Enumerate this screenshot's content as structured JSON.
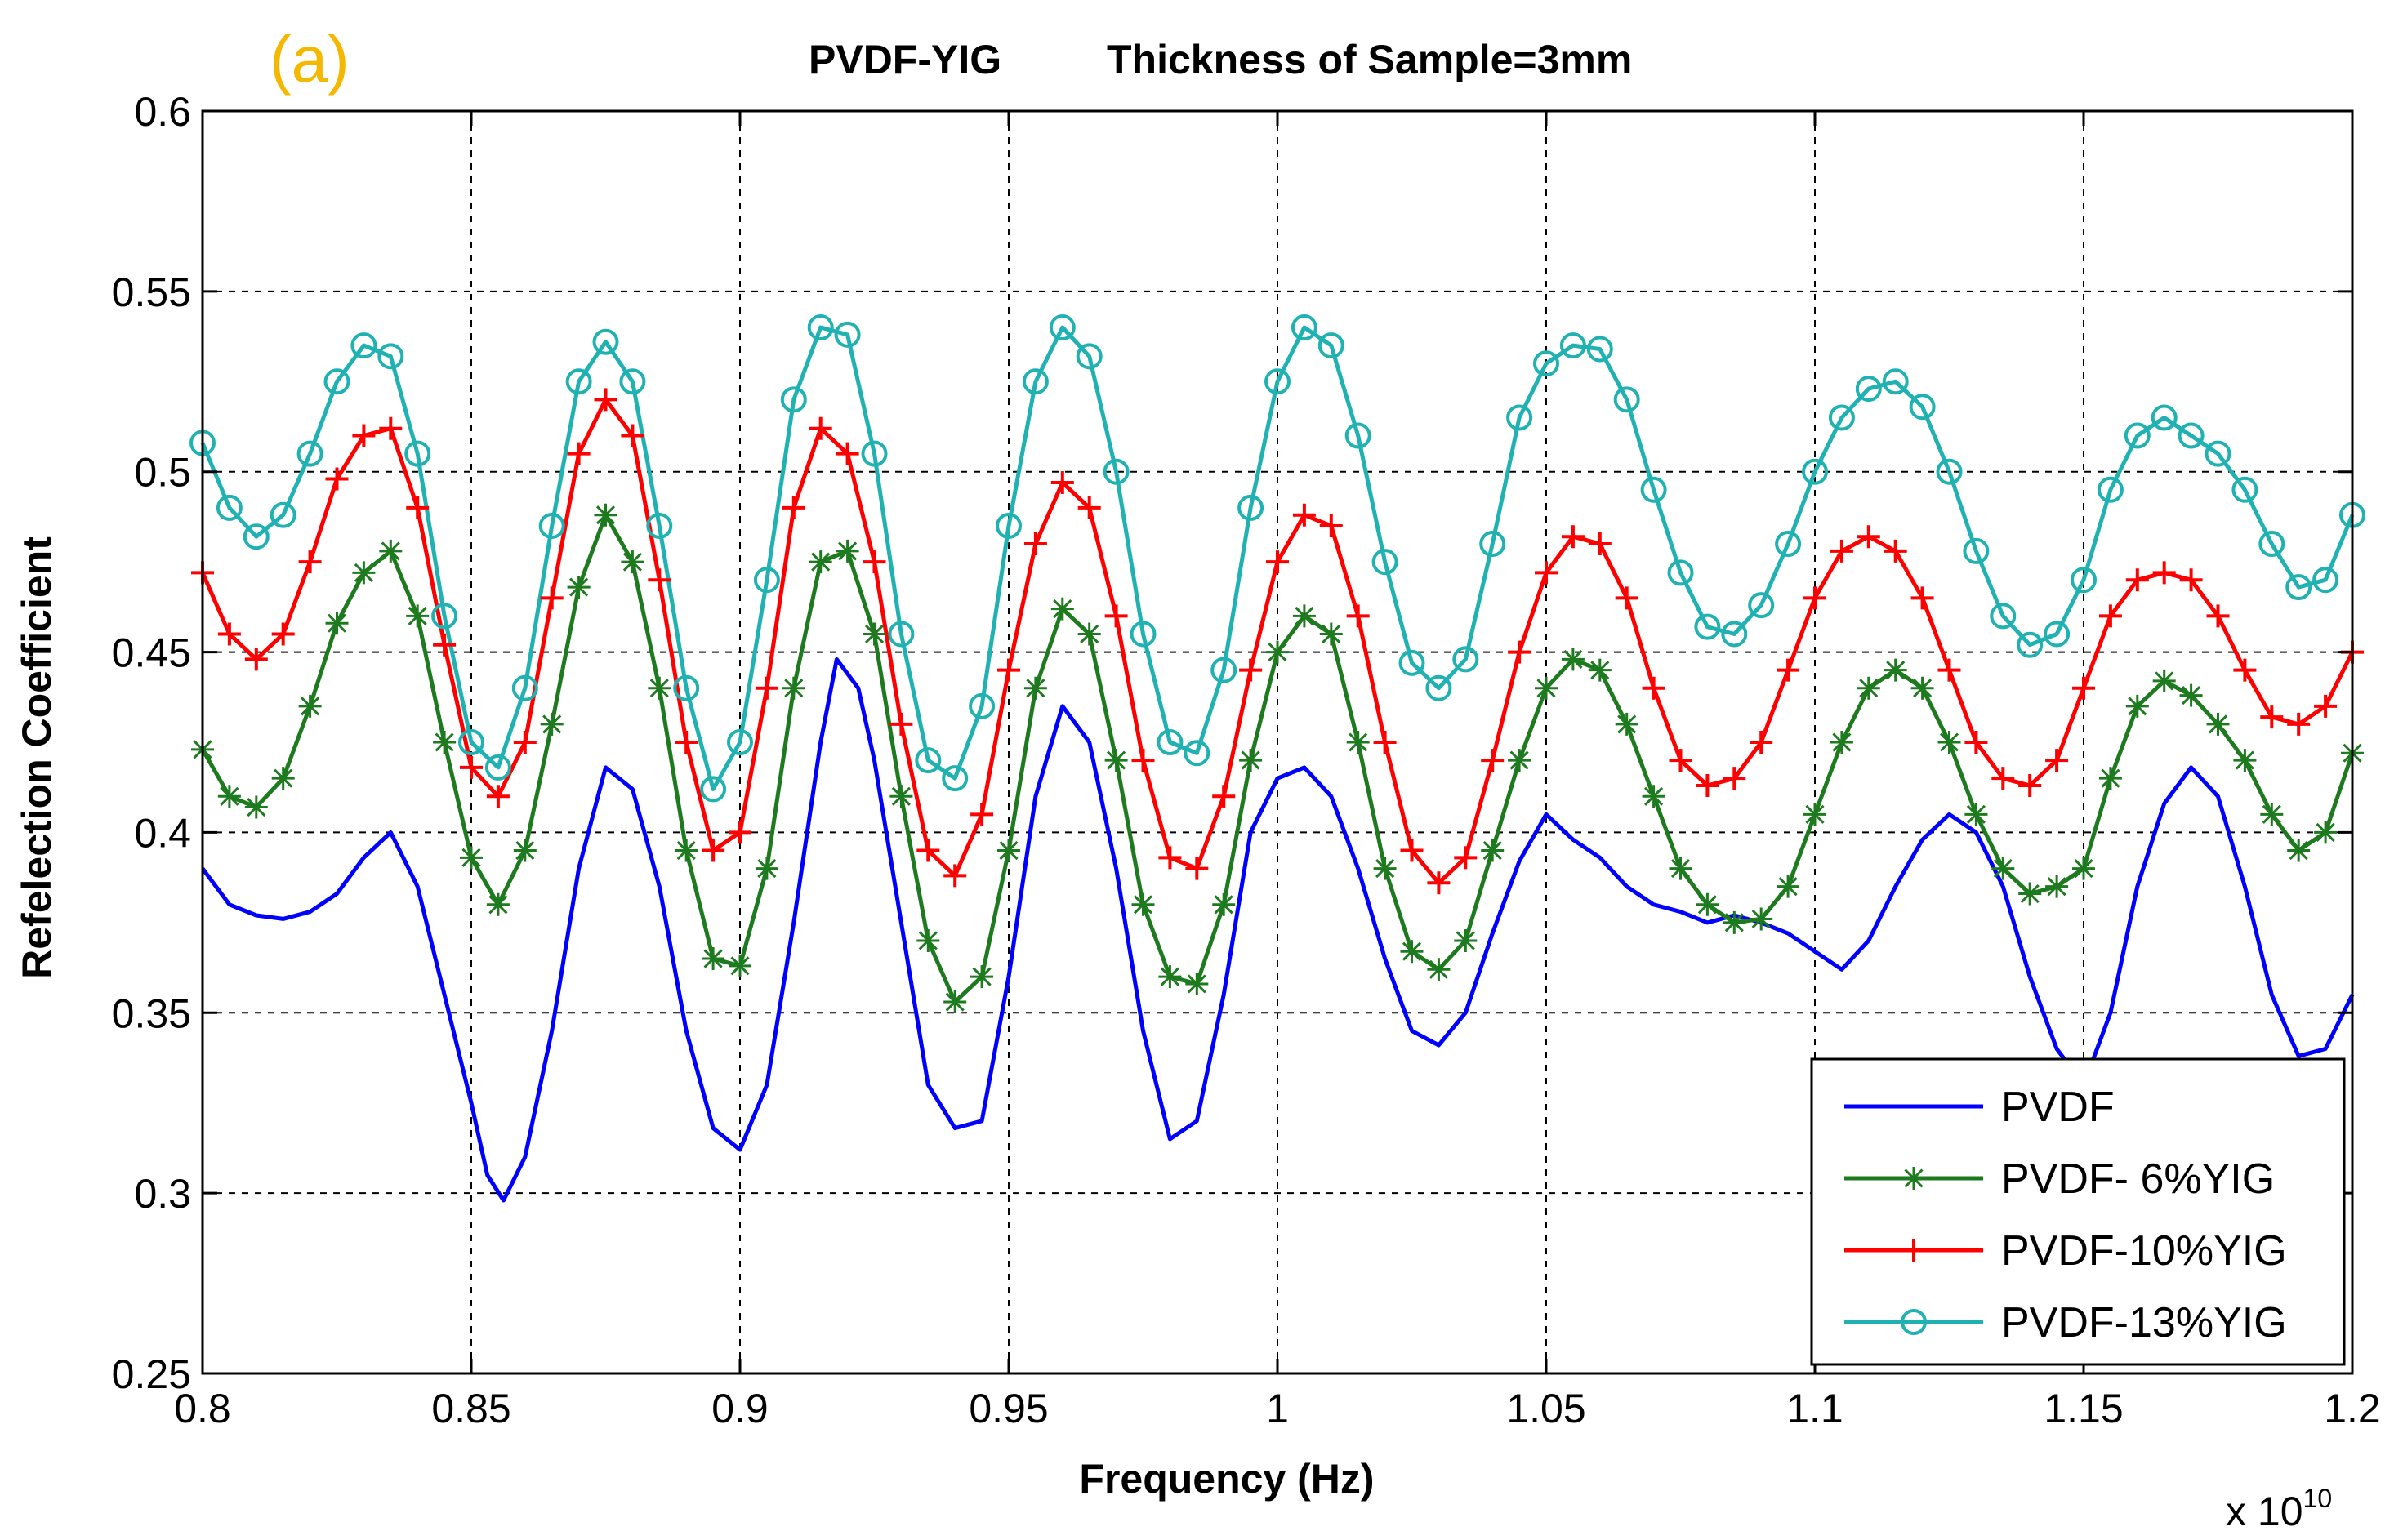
{
  "panel_label": "(a)",
  "chart_data": {
    "type": "line",
    "title_left": "PVDF-YIG",
    "title_right": "Thickness of Sample=3mm",
    "xlabel": "Frequency (Hz)",
    "ylabel": "Refelection Coefficient",
    "x_multiplier_base": "x 10",
    "x_multiplier_exp": "10",
    "xlim": [
      0.8,
      1.2
    ],
    "ylim": [
      0.25,
      0.6
    ],
    "x_ticks": [
      0.8,
      0.85,
      0.9,
      0.95,
      1.0,
      1.05,
      1.1,
      1.15,
      1.2
    ],
    "x_tick_labels": [
      "0.8",
      "0.85",
      "0.9",
      "0.95",
      "1",
      "1.05",
      "1.1",
      "1.15",
      "1.2"
    ],
    "y_ticks": [
      0.25,
      0.3,
      0.35,
      0.4,
      0.45,
      0.5,
      0.55,
      0.6
    ],
    "y_tick_labels": [
      "0.25",
      "0.3",
      "0.35",
      "0.4",
      "0.45",
      "0.5",
      "0.55",
      "0.6"
    ],
    "grid": true,
    "legend_position": "bottom-right",
    "series": [
      {
        "name": "PVDF",
        "color": "#0000ff",
        "marker": "none",
        "x": [
          0.8,
          0.805,
          0.81,
          0.815,
          0.82,
          0.825,
          0.83,
          0.835,
          0.84,
          0.845,
          0.85,
          0.853,
          0.856,
          0.86,
          0.865,
          0.87,
          0.875,
          0.88,
          0.885,
          0.89,
          0.895,
          0.9,
          0.905,
          0.91,
          0.915,
          0.918,
          0.922,
          0.925,
          0.93,
          0.935,
          0.94,
          0.945,
          0.95,
          0.955,
          0.96,
          0.965,
          0.97,
          0.975,
          0.98,
          0.985,
          0.99,
          0.995,
          1.0,
          1.005,
          1.01,
          1.015,
          1.02,
          1.025,
          1.03,
          1.035,
          1.04,
          1.045,
          1.05,
          1.055,
          1.06,
          1.065,
          1.07,
          1.075,
          1.08,
          1.085,
          1.09,
          1.095,
          1.1,
          1.105,
          1.11,
          1.115,
          1.12,
          1.125,
          1.13,
          1.135,
          1.14,
          1.145,
          1.15,
          1.155,
          1.16,
          1.165,
          1.17,
          1.175,
          1.18,
          1.185,
          1.19,
          1.195,
          1.2
        ],
        "y": [
          0.39,
          0.38,
          0.377,
          0.376,
          0.378,
          0.383,
          0.393,
          0.4,
          0.385,
          0.355,
          0.325,
          0.305,
          0.298,
          0.31,
          0.345,
          0.39,
          0.418,
          0.412,
          0.385,
          0.345,
          0.318,
          0.312,
          0.33,
          0.375,
          0.425,
          0.448,
          0.44,
          0.42,
          0.375,
          0.33,
          0.318,
          0.32,
          0.36,
          0.41,
          0.435,
          0.425,
          0.39,
          0.345,
          0.315,
          0.32,
          0.355,
          0.4,
          0.415,
          0.418,
          0.41,
          0.39,
          0.365,
          0.345,
          0.341,
          0.35,
          0.372,
          0.392,
          0.405,
          0.398,
          0.393,
          0.385,
          0.38,
          0.378,
          0.375,
          0.377,
          0.375,
          0.372,
          0.367,
          0.362,
          0.37,
          0.385,
          0.398,
          0.405,
          0.4,
          0.385,
          0.36,
          0.34,
          0.33,
          0.35,
          0.385,
          0.408,
          0.418,
          0.41,
          0.385,
          0.355,
          0.338,
          0.34,
          0.355
        ]
      },
      {
        "name": "PVDF- 6%YIG",
        "color": "#1e7a1e",
        "marker": "star",
        "x": [
          0.8,
          0.805,
          0.81,
          0.815,
          0.82,
          0.825,
          0.83,
          0.835,
          0.84,
          0.845,
          0.85,
          0.855,
          0.86,
          0.865,
          0.87,
          0.875,
          0.88,
          0.885,
          0.89,
          0.895,
          0.9,
          0.905,
          0.91,
          0.915,
          0.92,
          0.925,
          0.93,
          0.935,
          0.94,
          0.945,
          0.95,
          0.955,
          0.96,
          0.965,
          0.97,
          0.975,
          0.98,
          0.985,
          0.99,
          0.995,
          1.0,
          1.005,
          1.01,
          1.015,
          1.02,
          1.025,
          1.03,
          1.035,
          1.04,
          1.045,
          1.05,
          1.055,
          1.06,
          1.065,
          1.07,
          1.075,
          1.08,
          1.085,
          1.09,
          1.095,
          1.1,
          1.105,
          1.11,
          1.115,
          1.12,
          1.125,
          1.13,
          1.135,
          1.14,
          1.145,
          1.15,
          1.155,
          1.16,
          1.165,
          1.17,
          1.175,
          1.18,
          1.185,
          1.19,
          1.195,
          1.2
        ],
        "y": [
          0.423,
          0.41,
          0.407,
          0.415,
          0.435,
          0.458,
          0.472,
          0.478,
          0.46,
          0.425,
          0.393,
          0.38,
          0.395,
          0.43,
          0.468,
          0.488,
          0.475,
          0.44,
          0.395,
          0.365,
          0.363,
          0.39,
          0.44,
          0.475,
          0.478,
          0.455,
          0.41,
          0.37,
          0.353,
          0.36,
          0.395,
          0.44,
          0.462,
          0.455,
          0.42,
          0.38,
          0.36,
          0.358,
          0.38,
          0.42,
          0.45,
          0.46,
          0.455,
          0.425,
          0.39,
          0.367,
          0.362,
          0.37,
          0.395,
          0.42,
          0.44,
          0.448,
          0.445,
          0.43,
          0.41,
          0.39,
          0.38,
          0.375,
          0.376,
          0.385,
          0.405,
          0.425,
          0.44,
          0.445,
          0.44,
          0.425,
          0.405,
          0.39,
          0.383,
          0.385,
          0.39,
          0.415,
          0.435,
          0.442,
          0.438,
          0.43,
          0.42,
          0.405,
          0.395,
          0.4,
          0.422
        ]
      },
      {
        "name": "PVDF-10%YIG",
        "color": "#ff0000",
        "marker": "plus",
        "x": [
          0.8,
          0.805,
          0.81,
          0.815,
          0.82,
          0.825,
          0.83,
          0.835,
          0.84,
          0.845,
          0.85,
          0.855,
          0.86,
          0.865,
          0.87,
          0.875,
          0.88,
          0.885,
          0.89,
          0.895,
          0.9,
          0.905,
          0.91,
          0.915,
          0.92,
          0.925,
          0.93,
          0.935,
          0.94,
          0.945,
          0.95,
          0.955,
          0.96,
          0.965,
          0.97,
          0.975,
          0.98,
          0.985,
          0.99,
          0.995,
          1.0,
          1.005,
          1.01,
          1.015,
          1.02,
          1.025,
          1.03,
          1.035,
          1.04,
          1.045,
          1.05,
          1.055,
          1.06,
          1.065,
          1.07,
          1.075,
          1.08,
          1.085,
          1.09,
          1.095,
          1.1,
          1.105,
          1.11,
          1.115,
          1.12,
          1.125,
          1.13,
          1.135,
          1.14,
          1.145,
          1.15,
          1.155,
          1.16,
          1.165,
          1.17,
          1.175,
          1.18,
          1.185,
          1.19,
          1.195,
          1.2
        ],
        "y": [
          0.472,
          0.455,
          0.448,
          0.455,
          0.475,
          0.498,
          0.51,
          0.512,
          0.49,
          0.452,
          0.418,
          0.41,
          0.425,
          0.465,
          0.505,
          0.52,
          0.51,
          0.47,
          0.425,
          0.395,
          0.4,
          0.44,
          0.49,
          0.512,
          0.505,
          0.475,
          0.43,
          0.395,
          0.388,
          0.405,
          0.445,
          0.48,
          0.497,
          0.49,
          0.46,
          0.42,
          0.393,
          0.39,
          0.41,
          0.445,
          0.475,
          0.488,
          0.485,
          0.46,
          0.425,
          0.395,
          0.386,
          0.393,
          0.42,
          0.45,
          0.472,
          0.482,
          0.48,
          0.465,
          0.44,
          0.42,
          0.413,
          0.415,
          0.425,
          0.445,
          0.465,
          0.478,
          0.482,
          0.478,
          0.465,
          0.445,
          0.425,
          0.415,
          0.413,
          0.42,
          0.44,
          0.46,
          0.47,
          0.472,
          0.47,
          0.46,
          0.445,
          0.432,
          0.43,
          0.435,
          0.45
        ]
      },
      {
        "name": "PVDF-13%YIG",
        "color": "#20b2b2",
        "marker": "circle",
        "x": [
          0.8,
          0.805,
          0.81,
          0.815,
          0.82,
          0.825,
          0.83,
          0.835,
          0.84,
          0.845,
          0.85,
          0.855,
          0.86,
          0.865,
          0.87,
          0.875,
          0.88,
          0.885,
          0.89,
          0.895,
          0.9,
          0.905,
          0.91,
          0.915,
          0.92,
          0.925,
          0.93,
          0.935,
          0.94,
          0.945,
          0.95,
          0.955,
          0.96,
          0.965,
          0.97,
          0.975,
          0.98,
          0.985,
          0.99,
          0.995,
          1.0,
          1.005,
          1.01,
          1.015,
          1.02,
          1.025,
          1.03,
          1.035,
          1.04,
          1.045,
          1.05,
          1.055,
          1.06,
          1.065,
          1.07,
          1.075,
          1.08,
          1.085,
          1.09,
          1.095,
          1.1,
          1.105,
          1.11,
          1.115,
          1.12,
          1.125,
          1.13,
          1.135,
          1.14,
          1.145,
          1.15,
          1.155,
          1.16,
          1.165,
          1.17,
          1.175,
          1.18,
          1.185,
          1.19,
          1.195,
          1.2
        ],
        "y": [
          0.508,
          0.49,
          0.482,
          0.488,
          0.505,
          0.525,
          0.535,
          0.532,
          0.505,
          0.46,
          0.425,
          0.418,
          0.44,
          0.485,
          0.525,
          0.536,
          0.525,
          0.485,
          0.44,
          0.412,
          0.425,
          0.47,
          0.52,
          0.54,
          0.538,
          0.505,
          0.455,
          0.42,
          0.415,
          0.435,
          0.485,
          0.525,
          0.54,
          0.532,
          0.5,
          0.455,
          0.425,
          0.422,
          0.445,
          0.49,
          0.525,
          0.54,
          0.535,
          0.51,
          0.475,
          0.447,
          0.44,
          0.448,
          0.48,
          0.515,
          0.53,
          0.535,
          0.534,
          0.52,
          0.495,
          0.472,
          0.457,
          0.455,
          0.463,
          0.48,
          0.5,
          0.515,
          0.523,
          0.525,
          0.518,
          0.5,
          0.478,
          0.46,
          0.452,
          0.455,
          0.47,
          0.495,
          0.51,
          0.515,
          0.51,
          0.505,
          0.495,
          0.48,
          0.468,
          0.47,
          0.488
        ]
      }
    ]
  }
}
